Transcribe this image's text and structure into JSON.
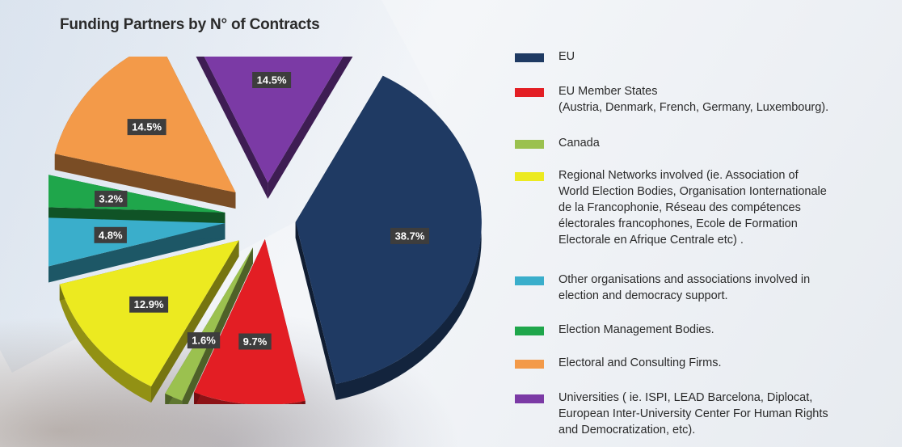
{
  "title": "Funding Partners by N° of Contracts",
  "chart_data": {
    "type": "pie",
    "title": "Funding Partners by N° of Contracts",
    "slices": [
      {
        "name": "EU",
        "value": 38.7,
        "label": "38.7%",
        "color": "#1f3a63"
      },
      {
        "name": "EU Member States",
        "value": 9.7,
        "label": "9.7%",
        "color": "#e31e24"
      },
      {
        "name": "Canada",
        "value": 1.6,
        "label": "1.6%",
        "color": "#9bc14f"
      },
      {
        "name": "Regional Networks involved",
        "value": 12.9,
        "label": "12.9%",
        "color": "#ecea20"
      },
      {
        "name": "Other organisations and associations involved",
        "value": 4.8,
        "label": "4.8%",
        "color": "#3aaecb"
      },
      {
        "name": "Election Management Bodies",
        "value": 3.2,
        "label": "3.2%",
        "color": "#1fa64b"
      },
      {
        "name": "Electoral and Consulting Firms",
        "value": 14.5,
        "label": "14.5%",
        "color": "#f39a49"
      },
      {
        "name": "Universities",
        "value": 14.5,
        "label": "14.5%",
        "color": "#7b3aa5"
      }
    ]
  },
  "legend": [
    {
      "name": "EU",
      "color": "#1f3a63",
      "lines": [
        "EU"
      ]
    },
    {
      "name": "EU Member States",
      "color": "#e31e24",
      "lines": [
        "EU Member States",
        "(Austria, Denmark, French, Germany, Luxembourg)."
      ]
    },
    {
      "name": "Canada",
      "color": "#9bc14f",
      "lines": [
        "Canada"
      ]
    },
    {
      "name": "Regional Networks",
      "color": "#ecea20",
      "lines": [
        "Regional Networks involved (ie. Association of",
        "World Election Bodies, Organisation Ionternationale",
        "de la Francophonie, Réseau des compétences",
        "électorales francophones, Ecole de Formation",
        "Electorale en Afrique Centrale etc) ."
      ]
    },
    {
      "name": "Other organisations",
      "color": "#3aaecb",
      "lines": [
        "Other organisations and associations involved in",
        "election and democracy support."
      ]
    },
    {
      "name": "Election Management Bodies",
      "color": "#1fa64b",
      "lines": [
        "Election Management Bodies."
      ]
    },
    {
      "name": "Electoral and Consulting Firms",
      "color": "#f39a49",
      "lines": [
        "Electoral and Consulting Firms."
      ]
    },
    {
      "name": "Universities",
      "color": "#7b3aa5",
      "lines": [
        "Universities ( ie. ISPI, LEAD Barcelona, Diplocat,",
        "European Inter-University Center For Human Rights",
        "and Democratization, etc)."
      ]
    }
  ]
}
